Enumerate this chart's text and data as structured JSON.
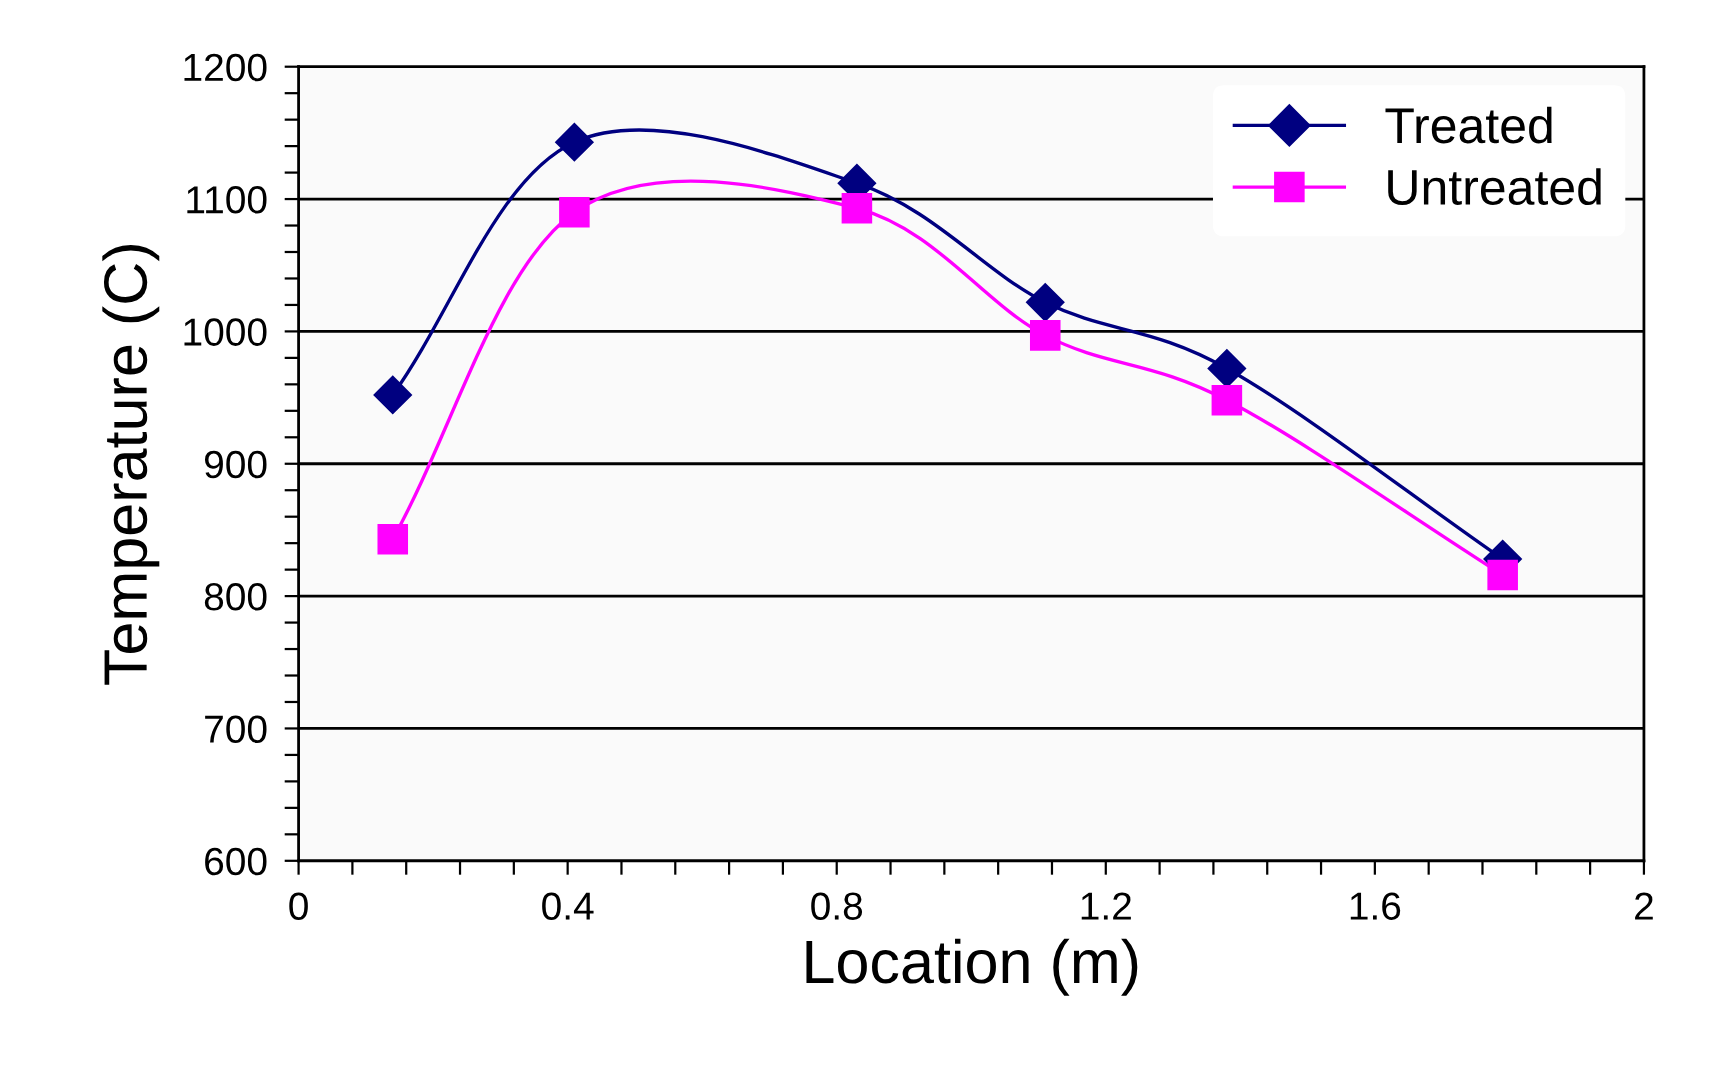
{
  "chart_data": {
    "type": "line",
    "xlabel": "Location (m)",
    "ylabel": "Temperature (C)",
    "series": [
      {
        "name": "Treated",
        "color": "#000080",
        "marker": "diamond",
        "x": [
          0.14,
          0.41,
          0.83,
          1.11,
          1.38,
          1.79
        ],
        "values": [
          952,
          1143,
          1112,
          1022,
          972,
          828
        ]
      },
      {
        "name": "Untreated",
        "color": "#ff00ff",
        "marker": "square",
        "x": [
          0.14,
          0.41,
          0.83,
          1.11,
          1.38,
          1.79
        ],
        "values": [
          843,
          1090,
          1093,
          997,
          948,
          816
        ]
      }
    ],
    "xlim": [
      0,
      2
    ],
    "ylim": [
      600,
      1200
    ],
    "xticks": [
      0,
      {
        "value": 0.08,
        "label": null
      },
      {
        "value": 0.16,
        "label": null
      },
      {
        "value": 0.24,
        "label": null
      },
      {
        "value": 0.32,
        "label": null
      },
      0.4,
      {
        "value": 0.48,
        "label": null
      },
      {
        "value": 0.56,
        "label": null
      },
      {
        "value": 0.64,
        "label": null
      },
      {
        "value": 0.72,
        "label": null
      },
      0.8,
      {
        "value": 0.88,
        "label": null
      },
      {
        "value": 0.96,
        "label": null
      },
      {
        "value": 1.04,
        "label": null
      },
      {
        "value": 1.12,
        "label": null
      },
      1.2,
      {
        "value": 1.28,
        "label": null
      },
      {
        "value": 1.36,
        "label": null
      },
      {
        "value": 1.44,
        "label": null
      },
      {
        "value": 1.52,
        "label": null
      },
      1.6,
      {
        "value": 1.68,
        "label": null
      },
      {
        "value": 1.76,
        "label": null
      },
      {
        "value": 1.84,
        "label": null
      },
      {
        "value": 1.92,
        "label": null
      },
      2
    ],
    "yticks": [
      600,
      {
        "value": 620,
        "label": null
      },
      {
        "value": 640,
        "label": null
      },
      {
        "value": 660,
        "label": null
      },
      {
        "value": 680,
        "label": null
      },
      700,
      {
        "value": 720,
        "label": null
      },
      {
        "value": 740,
        "label": null
      },
      {
        "value": 760,
        "label": null
      },
      {
        "value": 780,
        "label": null
      },
      800,
      {
        "value": 820,
        "label": null
      },
      {
        "value": 840,
        "label": null
      },
      {
        "value": 860,
        "label": null
      },
      {
        "value": 880,
        "label": null
      },
      900,
      {
        "value": 920,
        "label": null
      },
      {
        "value": 940,
        "label": null
      },
      {
        "value": 960,
        "label": null
      },
      {
        "value": 980,
        "label": null
      },
      1000,
      {
        "value": 1020,
        "label": null
      },
      {
        "value": 1040,
        "label": null
      },
      {
        "value": 1060,
        "label": null
      },
      {
        "value": 1080,
        "label": null
      },
      1100,
      {
        "value": 1120,
        "label": null
      },
      {
        "value": 1140,
        "label": null
      },
      {
        "value": 1160,
        "label": null
      },
      {
        "value": 1180,
        "label": null
      },
      1200
    ],
    "grid": "y",
    "legend": "top right",
    "line_style": "solid"
  }
}
